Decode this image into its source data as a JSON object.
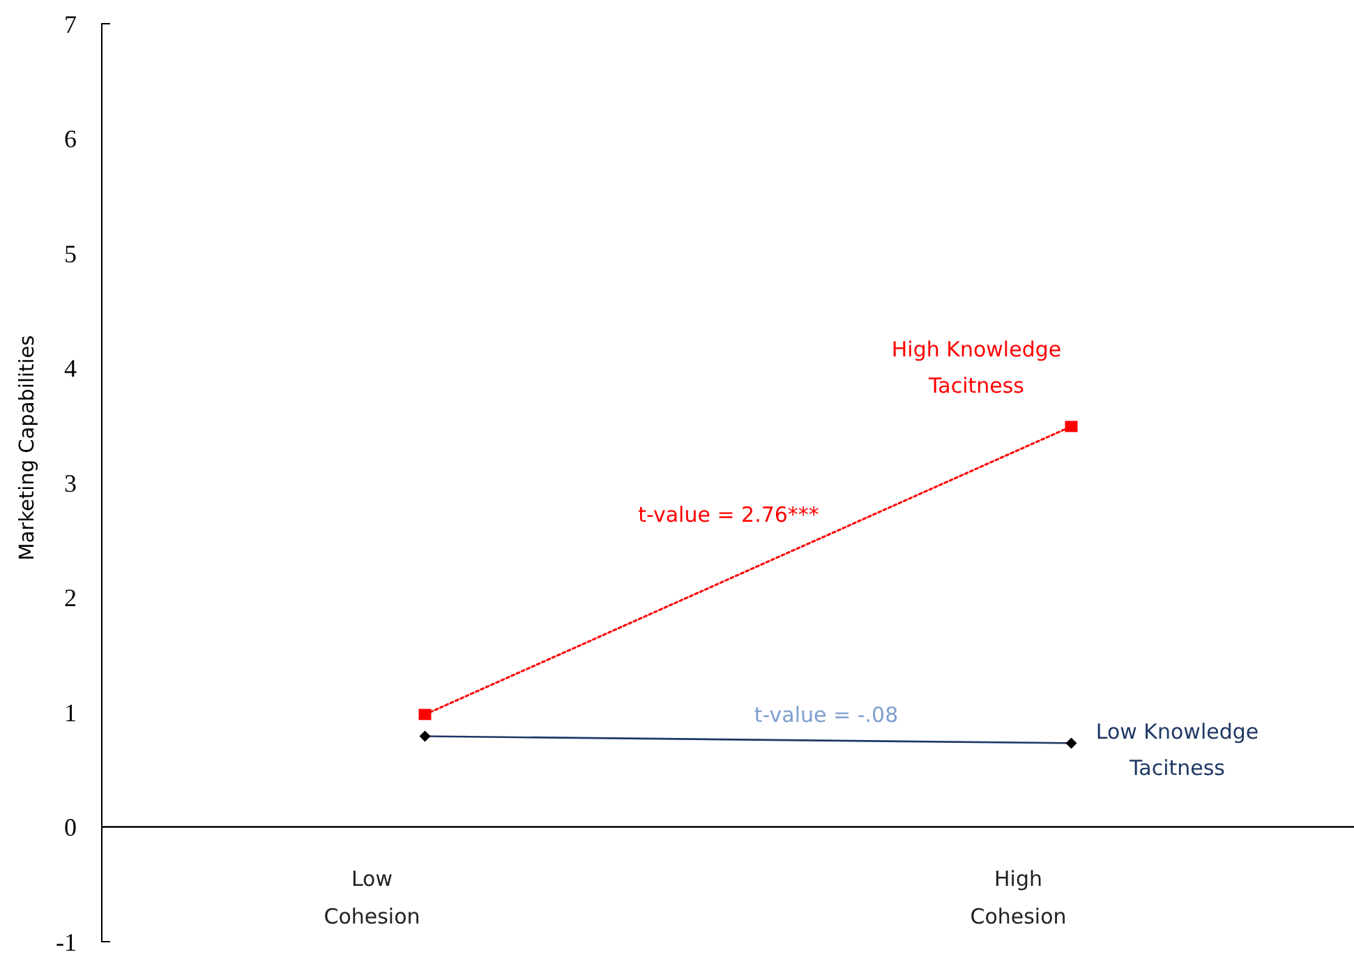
{
  "chart_data": {
    "type": "line",
    "ylabel": "Marketing Capabilities",
    "categories": [
      "Low Cohesion",
      "High Cohesion"
    ],
    "series": [
      {
        "name": "High Knowledge Tacitness",
        "color": "#ff0000",
        "values": [
          0.98,
          3.49
        ],
        "marker": "square",
        "line_style": "dotted"
      },
      {
        "name": "Low Knowledge Tacitness",
        "color": "#1f3864",
        "values": [
          0.79,
          0.73
        ],
        "marker": "diamond",
        "line_style": "solid"
      }
    ],
    "annotations": [
      "t-value = 2.76***",
      "t-value = -.08"
    ],
    "ylim": [
      -1,
      7
    ],
    "yticks": [
      -1,
      0,
      1,
      2,
      3,
      4,
      5,
      6,
      7
    ]
  }
}
